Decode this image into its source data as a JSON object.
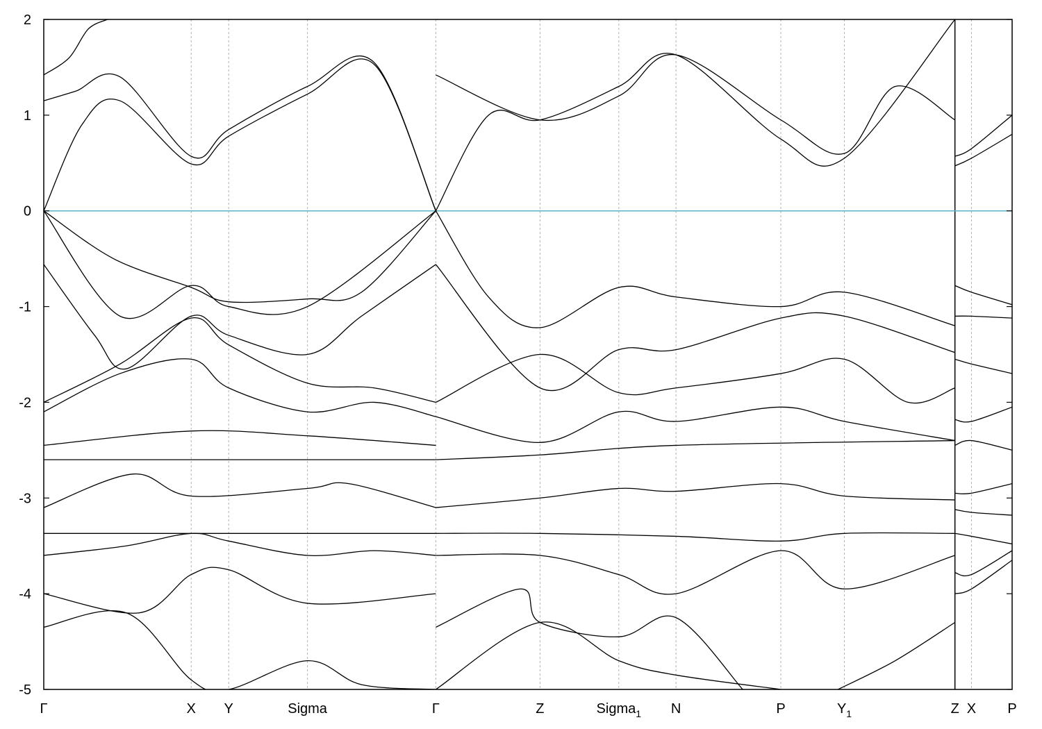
{
  "chart_data": {
    "type": "line",
    "title": "",
    "xlabel": "",
    "ylabel": "",
    "ylim": [
      -5,
      2
    ],
    "yticks": [
      2,
      1,
      0,
      -1,
      -2,
      -3,
      -4,
      -5
    ],
    "ytick_labels": [
      "2",
      "1",
      "0",
      "-1",
      "-2",
      "-3",
      "-4",
      "-5"
    ],
    "grid": "vertical dashed at high-symmetry points",
    "fermi_level": 0,
    "colors": {
      "bands": "#000000",
      "fermi": "#5ab4c8",
      "grid": "#b0b0b0",
      "axes": "#000000"
    },
    "kpoints": [
      {
        "label": "Γ",
        "sub": "",
        "pos": 0.0
      },
      {
        "label": "X",
        "sub": "",
        "pos": 2.32
      },
      {
        "label": "Y",
        "sub": "",
        "pos": 2.91
      },
      {
        "label": "Sigma",
        "sub": "",
        "pos": 4.15
      },
      {
        "label": "Γ",
        "sub": "",
        "pos": 6.17
      },
      {
        "label": "Z",
        "sub": "",
        "pos": 7.81
      },
      {
        "label": "Sigma",
        "sub": "1",
        "pos": 9.05
      },
      {
        "label": "N",
        "sub": "",
        "pos": 9.95
      },
      {
        "label": "P",
        "sub": "",
        "pos": 11.6
      },
      {
        "label": "Y",
        "sub": "1",
        "pos": 12.6
      },
      {
        "label": "Z",
        "sub": "",
        "pos": 14.34
      },
      {
        "label": "X",
        "sub": "",
        "pos": 14.6
      },
      {
        "label": "P",
        "sub": "",
        "pos": 15.24
      }
    ],
    "xlim": [
      0,
      15.24
    ],
    "series": [
      {
        "segment": 1,
        "x": [
          0,
          0.6,
          1.2,
          2.32,
          2.91,
          4.15,
          5.2,
          6.17
        ],
        "y": [
          0,
          0.9,
          1.15,
          0.49,
          0.78,
          1.22,
          1.53,
          0
        ]
      },
      {
        "segment": 1,
        "x": [
          0,
          0.5,
          1.2,
          2.32,
          2.91,
          4.15,
          5.2,
          6.17
        ],
        "y": [
          1.15,
          1.25,
          1.4,
          0.57,
          0.85,
          1.3,
          1.55,
          0
        ]
      },
      {
        "segment": 1,
        "x": [
          0,
          0.4,
          0.7,
          1.0
        ],
        "y": [
          1.42,
          1.6,
          1.9,
          2.0
        ]
      },
      {
        "segment": 1,
        "x": [
          0,
          1.1,
          2.32,
          2.91,
          4.15,
          5.0,
          6.17
        ],
        "y": [
          0,
          -0.5,
          -0.8,
          -0.95,
          -0.92,
          -0.85,
          0
        ]
      },
      {
        "segment": 1,
        "x": [
          0,
          1.2,
          2.32,
          2.91,
          4.15,
          6.17
        ],
        "y": [
          0,
          -1.1,
          -0.78,
          -1.0,
          -1.0,
          0
        ]
      },
      {
        "segment": 1,
        "x": [
          0,
          0.8,
          1.3,
          2.32,
          2.91,
          4.15,
          5.0,
          6.17
        ],
        "y": [
          -0.56,
          -1.3,
          -1.65,
          -1.1,
          -1.3,
          -1.5,
          -1.1,
          -0.56
        ]
      },
      {
        "segment": 1,
        "x": [
          0,
          1.2,
          2.32,
          2.91,
          4.15,
          5.2,
          6.17
        ],
        "y": [
          -2.0,
          -1.6,
          -1.12,
          -1.4,
          -1.8,
          -1.85,
          -2.0
        ]
      },
      {
        "segment": 1,
        "x": [
          0,
          1.2,
          2.32,
          2.91,
          4.15,
          5.2,
          6.17
        ],
        "y": [
          -2.1,
          -1.7,
          -1.55,
          -1.85,
          -2.1,
          -2.0,
          -2.15
        ]
      },
      {
        "segment": 1,
        "x": [
          0,
          2.32,
          4.15,
          6.17
        ],
        "y": [
          -2.45,
          -2.3,
          -2.35,
          -2.45
        ]
      },
      {
        "segment": 1,
        "x": [
          0,
          6.17
        ],
        "y": [
          -2.6,
          -2.6
        ]
      },
      {
        "segment": 1,
        "x": [
          0,
          1.4,
          2.32,
          4.15,
          4.8,
          6.17
        ],
        "y": [
          -3.1,
          -2.75,
          -2.98,
          -2.9,
          -2.85,
          -3.1
        ]
      },
      {
        "segment": 1,
        "x": [
          0,
          6.17
        ],
        "y": [
          -3.37,
          -3.37
        ]
      },
      {
        "segment": 1,
        "x": [
          0,
          1.3,
          2.32,
          2.91,
          4.15,
          5.2,
          6.17
        ],
        "y": [
          -3.6,
          -3.5,
          -3.37,
          -3.45,
          -3.6,
          -3.55,
          -3.6
        ]
      },
      {
        "segment": 1,
        "x": [
          0,
          1.5,
          2.32,
          2.91,
          4.15,
          6.17
        ],
        "y": [
          -4.0,
          -4.2,
          -3.8,
          -3.75,
          -4.1,
          -4.0
        ]
      },
      {
        "segment": 1,
        "x": [
          0,
          1.3,
          2.32,
          2.91,
          4.15,
          5.0,
          6.17
        ],
        "y": [
          -4.35,
          -4.2,
          -4.9,
          -5.0,
          -4.7,
          -4.95,
          -5.0
        ]
      },
      {
        "segment": 2,
        "x": [
          6.17,
          7.0,
          7.81,
          9.05,
          9.95,
          11.6,
          12.6,
          14.34
        ],
        "y": [
          0,
          1.0,
          0.95,
          1.3,
          1.63,
          0.75,
          0.55,
          2.0
        ]
      },
      {
        "segment": 2,
        "x": [
          6.17,
          7.81,
          9.05,
          9.95,
          11.6,
          12.6,
          13.4,
          14.34
        ],
        "y": [
          1.42,
          0.95,
          1.2,
          1.63,
          0.95,
          0.6,
          1.3,
          0.95
        ]
      },
      {
        "segment": 2,
        "x": [
          6.17,
          7.0,
          7.81,
          9.05,
          9.95,
          11.6,
          12.6,
          14.34
        ],
        "y": [
          0,
          -0.9,
          -1.22,
          -0.8,
          -0.9,
          -1.0,
          -0.85,
          -1.2
        ]
      },
      {
        "segment": 2,
        "x": [
          6.17,
          7.81,
          9.05,
          9.95,
          11.6,
          12.6,
          14.34
        ],
        "y": [
          -0.56,
          -1.85,
          -1.45,
          -1.45,
          -1.12,
          -1.1,
          -1.48
        ]
      },
      {
        "segment": 2,
        "x": [
          6.17,
          7.81,
          9.05,
          9.95,
          11.6,
          12.6,
          13.6,
          14.34
        ],
        "y": [
          -2.0,
          -1.5,
          -1.9,
          -1.85,
          -1.7,
          -1.55,
          -2.0,
          -1.85
        ]
      },
      {
        "segment": 2,
        "x": [
          6.17,
          7.81,
          9.05,
          9.95,
          11.6,
          12.6,
          14.34
        ],
        "y": [
          -2.15,
          -2.42,
          -2.1,
          -2.2,
          -2.05,
          -2.2,
          -2.4
        ]
      },
      {
        "segment": 2,
        "x": [
          6.17,
          7.81,
          9.95,
          14.34
        ],
        "y": [
          -2.6,
          -2.55,
          -2.45,
          -2.4
        ]
      },
      {
        "segment": 2,
        "x": [
          6.17,
          7.81,
          9.05,
          9.95,
          11.6,
          12.6,
          14.34
        ],
        "y": [
          -3.1,
          -3.0,
          -2.9,
          -2.93,
          -2.85,
          -2.98,
          -3.02
        ]
      },
      {
        "segment": 2,
        "x": [
          6.17,
          7.81,
          9.95,
          11.6,
          12.6,
          14.34
        ],
        "y": [
          -3.37,
          -3.37,
          -3.4,
          -3.45,
          -3.37,
          -3.37
        ]
      },
      {
        "segment": 2,
        "x": [
          6.17,
          7.81,
          9.05,
          9.95,
          11.6,
          12.6,
          14.34
        ],
        "y": [
          -3.6,
          -3.6,
          -3.8,
          -4.0,
          -3.55,
          -3.95,
          -3.6
        ]
      },
      {
        "segment": 2,
        "x": [
          6.17,
          7.5,
          7.81,
          9.05,
          9.95,
          11.0
        ],
        "y": [
          -4.35,
          -3.95,
          -4.3,
          -4.45,
          -4.25,
          -5.0
        ]
      },
      {
        "segment": 2,
        "x": [
          6.17,
          7.81,
          9.05,
          9.95,
          11.6
        ],
        "y": [
          -5.0,
          -4.3,
          -4.7,
          -4.85,
          -5.0
        ]
      },
      {
        "segment": 2,
        "x": [
          12.5,
          13.4,
          14.34
        ],
        "y": [
          -5.0,
          -4.7,
          -4.3
        ]
      },
      {
        "segment": 3,
        "x": [
          14.34,
          14.6,
          15.24
        ],
        "y": [
          0.57,
          0.65,
          1.0
        ]
      },
      {
        "segment": 3,
        "x": [
          14.34,
          14.6,
          15.24
        ],
        "y": [
          0.47,
          0.55,
          0.8
        ]
      },
      {
        "segment": 3,
        "x": [
          14.34,
          14.6,
          15.24
        ],
        "y": [
          -0.78,
          -0.85,
          -0.98
        ]
      },
      {
        "segment": 3,
        "x": [
          14.34,
          14.6,
          15.24
        ],
        "y": [
          -1.1,
          -1.1,
          -1.12
        ]
      },
      {
        "segment": 3,
        "x": [
          14.34,
          14.6,
          15.24
        ],
        "y": [
          -1.55,
          -1.6,
          -1.7
        ]
      },
      {
        "segment": 3,
        "x": [
          14.34,
          14.6,
          15.24
        ],
        "y": [
          -2.18,
          -2.2,
          -2.05
        ]
      },
      {
        "segment": 3,
        "x": [
          14.34,
          14.6,
          15.24
        ],
        "y": [
          -2.45,
          -2.4,
          -2.5
        ]
      },
      {
        "segment": 3,
        "x": [
          14.34,
          14.6,
          15.24
        ],
        "y": [
          -2.95,
          -2.95,
          -2.85
        ]
      },
      {
        "segment": 3,
        "x": [
          14.34,
          14.6,
          15.24
        ],
        "y": [
          -3.12,
          -3.15,
          -3.18
        ]
      },
      {
        "segment": 3,
        "x": [
          14.34,
          14.6,
          15.24
        ],
        "y": [
          -3.37,
          -3.4,
          -3.48
        ]
      },
      {
        "segment": 3,
        "x": [
          14.34,
          14.6,
          15.24
        ],
        "y": [
          -3.78,
          -3.8,
          -3.55
        ]
      },
      {
        "segment": 3,
        "x": [
          14.34,
          14.6,
          15.24
        ],
        "y": [
          -4.0,
          -3.95,
          -3.65
        ]
      }
    ]
  }
}
